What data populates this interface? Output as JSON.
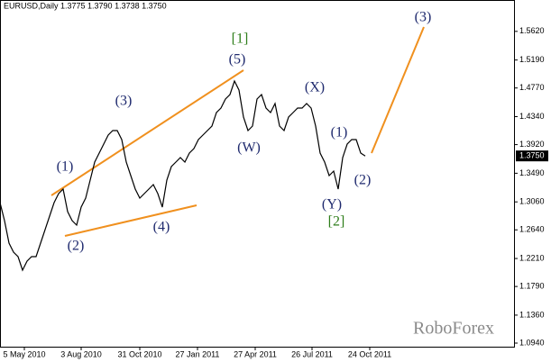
{
  "chart_data": {
    "type": "line",
    "title": "EURUSD,Daily  1.3775 1.3790 1.3738 1.3750",
    "watermark": "RoboForex",
    "last_price": {
      "value": 1.375,
      "label": "1.3750"
    },
    "wave_labels": [
      "(1)",
      "(2)",
      "(3)",
      "(4)",
      "(5)",
      "[1]",
      "(W)",
      "(X)",
      "(Y)",
      "[2]",
      "(1)",
      "(2)",
      "(3)"
    ],
    "x": [
      0,
      5,
      10,
      15,
      20,
      25,
      30,
      35,
      40,
      45,
      50,
      55,
      60,
      65,
      70,
      75,
      80,
      85,
      90,
      95,
      100,
      105,
      110,
      115,
      120,
      125,
      130,
      135,
      140,
      145,
      150,
      155,
      160,
      165,
      170,
      175,
      180,
      185,
      190,
      195,
      200,
      205,
      210,
      215,
      220,
      225,
      230,
      235,
      240,
      245,
      250,
      255,
      260,
      265,
      270,
      275,
      280,
      285,
      290,
      295,
      300,
      305,
      310,
      315,
      320,
      325,
      330,
      335,
      340,
      345,
      350,
      355,
      360,
      365,
      370,
      375,
      380,
      385,
      390,
      395,
      400,
      405
    ],
    "series": [
      {
        "name": "EURUSD",
        "color": "#000000",
        "values": [
          1.3049,
          1.2779,
          1.2441,
          1.2306,
          1.2238,
          1.2035,
          1.217,
          1.2238,
          1.2238,
          1.2441,
          1.2644,
          1.2846,
          1.3049,
          1.3184,
          1.3252,
          1.2914,
          1.2779,
          1.2711,
          1.2982,
          1.3117,
          1.3387,
          1.3658,
          1.3793,
          1.3928,
          1.4063,
          1.4131,
          1.4131,
          1.3996,
          1.3658,
          1.3455,
          1.3252,
          1.3117,
          1.3184,
          1.3252,
          1.332,
          1.3184,
          1.2982,
          1.3387,
          1.359,
          1.3658,
          1.3725,
          1.3658,
          1.3793,
          1.386,
          1.3996,
          1.4063,
          1.4131,
          1.4198,
          1.4401,
          1.4469,
          1.4604,
          1.4672,
          1.4874,
          1.4739,
          1.4334,
          1.4131,
          1.4198,
          1.4604,
          1.4672,
          1.4469,
          1.4401,
          1.4536,
          1.4198,
          1.4131,
          1.4334,
          1.4401,
          1.4469,
          1.4469,
          1.4536,
          1.4469,
          1.4198,
          1.3793,
          1.3658,
          1.3455,
          1.3522,
          1.3252,
          1.3725,
          1.3928,
          1.3996,
          1.3996,
          1.3793,
          1.375
        ]
      }
    ],
    "xlim": [
      0,
      570
    ],
    "xticks": [
      {
        "value": 27,
        "label": "5 May 2010"
      },
      {
        "value": 90,
        "label": "3 Aug 2010"
      },
      {
        "value": 155,
        "label": "31 Oct 2010"
      },
      {
        "value": 219,
        "label": "27 Jan 2011"
      },
      {
        "value": 283,
        "label": "27 Apr 2011"
      },
      {
        "value": 346,
        "label": "26 Jul 2011"
      },
      {
        "value": 410,
        "label": "24 Oct 2011"
      }
    ],
    "ylim": [
      1.0886,
      1.6091
    ],
    "yticks": [
      {
        "value": 1.562,
        "label": "1.5620"
      },
      {
        "value": 1.519,
        "label": "1.5190"
      },
      {
        "value": 1.477,
        "label": "1.4770"
      },
      {
        "value": 1.434,
        "label": "1.4340"
      },
      {
        "value": 1.392,
        "label": "1.3920"
      },
      {
        "value": 1.349,
        "label": "1.3490"
      },
      {
        "value": 1.306,
        "label": "1.3060"
      },
      {
        "value": 1.264,
        "label": "1.2640"
      },
      {
        "value": 1.221,
        "label": "1.2210"
      },
      {
        "value": 1.179,
        "label": "1.1790"
      },
      {
        "value": 1.136,
        "label": "1.1360"
      },
      {
        "value": 1.094,
        "label": "1.0940"
      }
    ],
    "grid": false
  }
}
